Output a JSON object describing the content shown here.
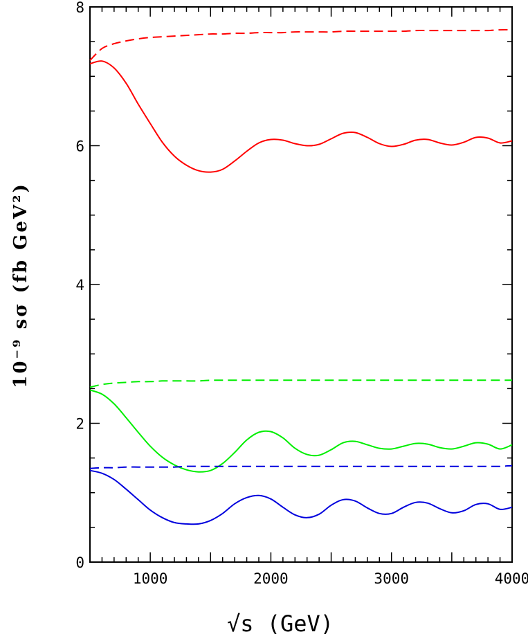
{
  "chart_data": {
    "type": "line",
    "xlabel": "√s (GeV)",
    "ylabel": "10⁻⁹ sσ (fb GeV²)",
    "xlim": [
      500,
      4000
    ],
    "ylim": [
      0,
      8
    ],
    "x_ticks": [
      "1000",
      "2000",
      "3000",
      "4000"
    ],
    "y_ticks": [
      "0",
      "2",
      "4",
      "6",
      "8"
    ],
    "x": [
      500,
      600,
      700,
      800,
      900,
      1000,
      1100,
      1200,
      1300,
      1400,
      1500,
      1600,
      1700,
      1800,
      1900,
      2000,
      2100,
      2200,
      2300,
      2400,
      2500,
      2600,
      2700,
      2800,
      2900,
      3000,
      3100,
      3200,
      3300,
      3400,
      3500,
      3600,
      3700,
      3800,
      3900,
      4000
    ],
    "series": [
      {
        "color": "#ff0000",
        "style": "dashed",
        "values": [
          7.23,
          7.4,
          7.47,
          7.51,
          7.54,
          7.56,
          7.57,
          7.58,
          7.59,
          7.6,
          7.61,
          7.61,
          7.62,
          7.62,
          7.63,
          7.63,
          7.63,
          7.64,
          7.64,
          7.64,
          7.64,
          7.65,
          7.65,
          7.65,
          7.65,
          7.65,
          7.65,
          7.66,
          7.66,
          7.66,
          7.66,
          7.66,
          7.66,
          7.66,
          7.67,
          7.67
        ]
      },
      {
        "color": "#ff0000",
        "style": "solid",
        "values": [
          7.18,
          7.22,
          7.12,
          6.9,
          6.6,
          6.32,
          6.05,
          5.85,
          5.72,
          5.64,
          5.62,
          5.66,
          5.78,
          5.92,
          6.04,
          6.09,
          6.08,
          6.03,
          6.0,
          6.02,
          6.1,
          6.18,
          6.19,
          6.12,
          6.03,
          5.99,
          6.02,
          6.08,
          6.09,
          6.04,
          6.01,
          6.05,
          6.12,
          6.11,
          6.04,
          6.07
        ]
      },
      {
        "color": "#00ee00",
        "style": "dashed",
        "values": [
          2.52,
          2.56,
          2.58,
          2.59,
          2.6,
          2.6,
          2.61,
          2.61,
          2.61,
          2.61,
          2.62,
          2.62,
          2.62,
          2.62,
          2.62,
          2.62,
          2.62,
          2.62,
          2.62,
          2.62,
          2.62,
          2.62,
          2.62,
          2.62,
          2.62,
          2.62,
          2.62,
          2.62,
          2.62,
          2.62,
          2.62,
          2.62,
          2.62,
          2.62,
          2.62,
          2.62
        ]
      },
      {
        "color": "#00ee00",
        "style": "solid",
        "values": [
          2.48,
          2.42,
          2.28,
          2.08,
          1.87,
          1.67,
          1.51,
          1.4,
          1.33,
          1.3,
          1.32,
          1.42,
          1.58,
          1.76,
          1.87,
          1.88,
          1.79,
          1.64,
          1.55,
          1.54,
          1.62,
          1.72,
          1.74,
          1.69,
          1.64,
          1.63,
          1.67,
          1.71,
          1.7,
          1.65,
          1.63,
          1.67,
          1.72,
          1.7,
          1.63,
          1.69
        ]
      },
      {
        "color": "#0000dd",
        "style": "dashed",
        "values": [
          1.35,
          1.36,
          1.36,
          1.37,
          1.37,
          1.37,
          1.37,
          1.37,
          1.38,
          1.38,
          1.38,
          1.38,
          1.38,
          1.38,
          1.38,
          1.38,
          1.38,
          1.38,
          1.38,
          1.38,
          1.38,
          1.38,
          1.38,
          1.38,
          1.38,
          1.38,
          1.38,
          1.38,
          1.38,
          1.38,
          1.38,
          1.38,
          1.38,
          1.38,
          1.38,
          1.39
        ]
      },
      {
        "color": "#0000dd",
        "style": "solid",
        "values": [
          1.32,
          1.28,
          1.19,
          1.05,
          0.9,
          0.75,
          0.64,
          0.57,
          0.55,
          0.55,
          0.6,
          0.7,
          0.84,
          0.93,
          0.96,
          0.91,
          0.79,
          0.68,
          0.64,
          0.69,
          0.82,
          0.9,
          0.88,
          0.78,
          0.7,
          0.7,
          0.79,
          0.86,
          0.85,
          0.77,
          0.71,
          0.74,
          0.83,
          0.84,
          0.76,
          0.79
        ]
      }
    ]
  }
}
